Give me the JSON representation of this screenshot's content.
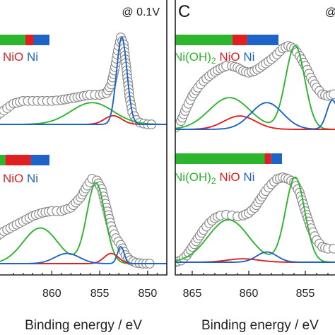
{
  "colors": {
    "ni_oh2": "#2db52d",
    "nio": "#e02020",
    "ni": "#1e64c8",
    "data_circle_edge": "#8a8a8a",
    "frame": "#222222"
  },
  "chart_data": [
    {
      "type": "line",
      "panel": "B",
      "panel_label": "",
      "potential_label": "@ 0.1V",
      "xlabel": "Binding energy / eV",
      "xlim": [
        866,
        848
      ],
      "x_reversed": true,
      "xticks": [
        860,
        855,
        850
      ],
      "grid": false,
      "spectra": [
        {
          "position": "upper",
          "legend_labels": [
            "Ni(OH)2",
            "NiO",
            "Ni"
          ],
          "legend_visible_labels": [
            "NiO",
            "Ni"
          ],
          "composition_bar": [
            {
              "component": "Ni(OH)2",
              "fraction": 0.62
            },
            {
              "component": "NiO",
              "fraction": 0.13
            },
            {
              "component": "Ni",
              "fraction": 0.25
            }
          ],
          "peaks": {
            "Ni(OH)2": [
              {
                "center": 855.8,
                "height": 0.25,
                "width": 2.2
              }
            ],
            "NiO": [
              {
                "center": 853.6,
                "height": 0.1,
                "width": 0.9
              }
            ],
            "Ni": [
              {
                "center": 852.7,
                "height": 1.0,
                "width": 0.55
              }
            ]
          },
          "data_points": [
            {
              "x": 866.0,
              "y": 0.08
            },
            {
              "x": 865.0,
              "y": 0.16
            },
            {
              "x": 864.0,
              "y": 0.24
            },
            {
              "x": 863.0,
              "y": 0.27
            },
            {
              "x": 862.0,
              "y": 0.27
            },
            {
              "x": 861.0,
              "y": 0.27
            },
            {
              "x": 860.0,
              "y": 0.27
            },
            {
              "x": 859.0,
              "y": 0.28
            },
            {
              "x": 858.0,
              "y": 0.3
            },
            {
              "x": 857.0,
              "y": 0.32
            },
            {
              "x": 856.0,
              "y": 0.34
            },
            {
              "x": 855.0,
              "y": 0.34
            },
            {
              "x": 854.3,
              "y": 0.36
            },
            {
              "x": 853.8,
              "y": 0.46
            },
            {
              "x": 853.4,
              "y": 0.66
            },
            {
              "x": 853.1,
              "y": 0.85
            },
            {
              "x": 852.8,
              "y": 1.0
            },
            {
              "x": 852.5,
              "y": 0.92
            },
            {
              "x": 852.2,
              "y": 0.62
            },
            {
              "x": 851.9,
              "y": 0.32
            },
            {
              "x": 851.6,
              "y": 0.14
            },
            {
              "x": 851.2,
              "y": 0.05
            },
            {
              "x": 850.8,
              "y": 0.02
            },
            {
              "x": 850.4,
              "y": 0.01
            },
            {
              "x": 850.0,
              "y": 0.0
            },
            {
              "x": 849.6,
              "y": 0.0
            }
          ]
        },
        {
          "position": "lower",
          "legend_labels": [
            "Ni(OH)2",
            "NiO",
            "Ni"
          ],
          "legend_visible_labels": [
            "NiO",
            "Ni"
          ],
          "composition_bar": [
            {
              "component": "Ni(OH)2",
              "fraction": 0.48
            },
            {
              "component": "NiO",
              "fraction": 0.3
            },
            {
              "component": "Ni",
              "fraction": 0.22
            }
          ],
          "peaks": {
            "Ni(OH)2": [
              {
                "center": 861.2,
                "height": 0.42,
                "width": 1.8
              },
              {
                "center": 855.4,
                "height": 0.95,
                "width": 0.95
              }
            ],
            "NiO": [
              {
                "center": 853.8,
                "height": 0.12,
                "width": 0.75
              }
            ],
            "Ni": [
              {
                "center": 858.4,
                "height": 0.12,
                "width": 1.3
              },
              {
                "center": 852.8,
                "height": 0.2,
                "width": 0.35
              }
            ]
          },
          "data_points": [
            {
              "x": 866.0,
              "y": 0.3
            },
            {
              "x": 865.0,
              "y": 0.38
            },
            {
              "x": 864.0,
              "y": 0.44
            },
            {
              "x": 863.0,
              "y": 0.5
            },
            {
              "x": 862.0,
              "y": 0.56
            },
            {
              "x": 861.0,
              "y": 0.6
            },
            {
              "x": 860.0,
              "y": 0.62
            },
            {
              "x": 859.0,
              "y": 0.62
            },
            {
              "x": 858.0,
              "y": 0.66
            },
            {
              "x": 857.0,
              "y": 0.78
            },
            {
              "x": 856.3,
              "y": 0.92
            },
            {
              "x": 855.8,
              "y": 1.0
            },
            {
              "x": 855.3,
              "y": 0.98
            },
            {
              "x": 854.8,
              "y": 0.88
            },
            {
              "x": 854.3,
              "y": 0.66
            },
            {
              "x": 853.8,
              "y": 0.44
            },
            {
              "x": 853.3,
              "y": 0.3
            },
            {
              "x": 852.8,
              "y": 0.22
            },
            {
              "x": 852.3,
              "y": 0.1
            },
            {
              "x": 851.8,
              "y": 0.04
            },
            {
              "x": 851.2,
              "y": 0.01
            },
            {
              "x": 850.5,
              "y": 0.0
            },
            {
              "x": 849.8,
              "y": 0.0
            }
          ]
        }
      ]
    },
    {
      "type": "line",
      "panel": "C",
      "panel_label": "C",
      "potential_label": "@",
      "xlabel": "Binding energy / eV",
      "xlim": [
        866.5,
        851
      ],
      "x_reversed": true,
      "xticks": [
        865,
        860,
        855
      ],
      "grid": false,
      "spectra": [
        {
          "position": "upper",
          "legend_labels": [
            "Ni(OH)2",
            "NiO",
            "Ni"
          ],
          "composition_bar": [
            {
              "component": "Ni(OH)2",
              "fraction": 0.56
            },
            {
              "component": "NiO",
              "fraction": 0.14
            },
            {
              "component": "Ni",
              "fraction": 0.3
            }
          ],
          "peaks": {
            "Ni(OH)2": [
              {
                "center": 861.7,
                "height": 0.38,
                "width": 1.8
              },
              {
                "center": 855.9,
                "height": 1.0,
                "width": 0.85
              }
            ],
            "NiO": [
              {
                "center": 860.8,
                "height": 0.16,
                "width": 1.4
              }
            ],
            "Ni": [
              {
                "center": 858.4,
                "height": 0.32,
                "width": 1.4
              },
              {
                "center": 852.6,
                "height": 0.35,
                "width": 0.5
              }
            ]
          },
          "data_points": [
            {
              "x": 866.5,
              "y": 0.02
            },
            {
              "x": 866.0,
              "y": 0.1
            },
            {
              "x": 865.5,
              "y": 0.26
            },
            {
              "x": 865.0,
              "y": 0.4
            },
            {
              "x": 864.5,
              "y": 0.5
            },
            {
              "x": 864.0,
              "y": 0.58
            },
            {
              "x": 863.5,
              "y": 0.64
            },
            {
              "x": 863.0,
              "y": 0.69
            },
            {
              "x": 862.5,
              "y": 0.73
            },
            {
              "x": 862.0,
              "y": 0.76
            },
            {
              "x": 861.5,
              "y": 0.76
            },
            {
              "x": 861.0,
              "y": 0.74
            },
            {
              "x": 860.5,
              "y": 0.7
            },
            {
              "x": 860.0,
              "y": 0.68
            },
            {
              "x": 859.5,
              "y": 0.7
            },
            {
              "x": 859.0,
              "y": 0.74
            },
            {
              "x": 858.5,
              "y": 0.79
            },
            {
              "x": 858.0,
              "y": 0.84
            },
            {
              "x": 857.5,
              "y": 0.9
            },
            {
              "x": 857.0,
              "y": 0.97
            },
            {
              "x": 856.5,
              "y": 1.0
            },
            {
              "x": 856.0,
              "y": 0.97
            },
            {
              "x": 855.5,
              "y": 0.88
            },
            {
              "x": 855.0,
              "y": 0.76
            },
            {
              "x": 854.5,
              "y": 0.62
            },
            {
              "x": 854.0,
              "y": 0.5
            },
            {
              "x": 853.5,
              "y": 0.42
            },
            {
              "x": 853.0,
              "y": 0.4
            },
            {
              "x": 852.5,
              "y": 0.42
            }
          ]
        },
        {
          "position": "lower",
          "legend_labels": [
            "Ni(OH)2",
            "NiO",
            "Ni"
          ],
          "composition_bar": [
            {
              "component": "Ni(OH)2",
              "fraction": 0.84
            },
            {
              "component": "NiO",
              "fraction": 0.06
            },
            {
              "component": "Ni",
              "fraction": 0.1
            }
          ],
          "peaks": {
            "Ni(OH)2": [
              {
                "center": 861.8,
                "height": 0.5,
                "width": 1.8
              },
              {
                "center": 855.9,
                "height": 1.0,
                "width": 0.85
              }
            ],
            "NiO": [
              {
                "center": 860.5,
                "height": 0.04,
                "width": 1.4
              }
            ],
            "Ni": [
              {
                "center": 858.4,
                "height": 0.12,
                "width": 0.9
              }
            ]
          },
          "data_points": [
            {
              "x": 866.5,
              "y": 0.0
            },
            {
              "x": 866.0,
              "y": 0.02
            },
            {
              "x": 865.5,
              "y": 0.08
            },
            {
              "x": 865.0,
              "y": 0.18
            },
            {
              "x": 864.5,
              "y": 0.28
            },
            {
              "x": 864.0,
              "y": 0.38
            },
            {
              "x": 863.5,
              "y": 0.46
            },
            {
              "x": 863.0,
              "y": 0.52
            },
            {
              "x": 862.5,
              "y": 0.55
            },
            {
              "x": 862.0,
              "y": 0.56
            },
            {
              "x": 861.5,
              "y": 0.55
            },
            {
              "x": 861.0,
              "y": 0.54
            },
            {
              "x": 860.5,
              "y": 0.55
            },
            {
              "x": 860.0,
              "y": 0.58
            },
            {
              "x": 859.5,
              "y": 0.64
            },
            {
              "x": 859.0,
              "y": 0.74
            },
            {
              "x": 858.5,
              "y": 0.84
            },
            {
              "x": 858.0,
              "y": 0.92
            },
            {
              "x": 857.5,
              "y": 0.98
            },
            {
              "x": 857.0,
              "y": 1.0
            },
            {
              "x": 856.5,
              "y": 0.98
            },
            {
              "x": 856.0,
              "y": 0.94
            },
            {
              "x": 855.5,
              "y": 0.82
            },
            {
              "x": 855.0,
              "y": 0.6
            },
            {
              "x": 854.5,
              "y": 0.4
            },
            {
              "x": 854.0,
              "y": 0.26
            },
            {
              "x": 853.5,
              "y": 0.18
            },
            {
              "x": 853.0,
              "y": 0.16
            },
            {
              "x": 852.5,
              "y": 0.16
            }
          ]
        }
      ]
    }
  ]
}
